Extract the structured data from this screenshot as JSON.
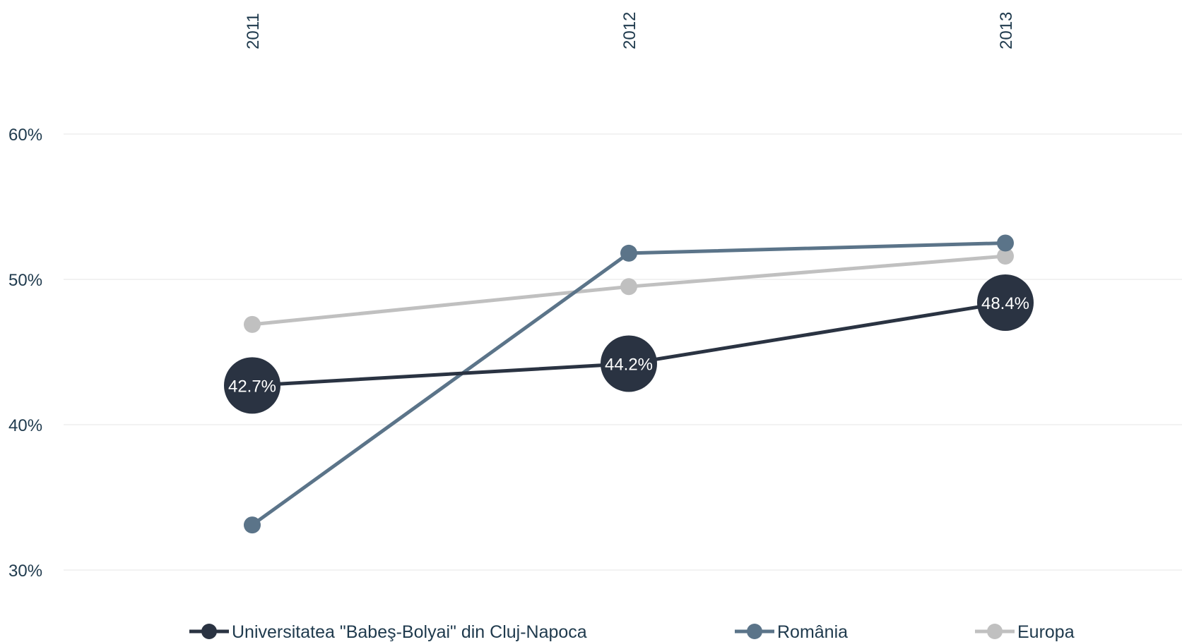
{
  "chart_data": {
    "type": "line",
    "x": [
      "2011",
      "2012",
      "2013"
    ],
    "ylim": [
      0.27,
      0.66
    ],
    "yticks": [
      0.3,
      0.4,
      0.5,
      0.6
    ],
    "ytick_labels": [
      "30%",
      "40%",
      "50%",
      "60%"
    ],
    "grid": true,
    "x_axis_position": "top",
    "legend_position": "bottom",
    "series": [
      {
        "name": "Universitatea \"Babeş-Bolyai\" din Cluj-Napoca",
        "values": [
          0.427,
          0.442,
          0.484
        ],
        "labels": [
          "42.7%",
          "44.2%",
          "48.4%"
        ],
        "color": "#2a3342",
        "marker": "large"
      },
      {
        "name": "România",
        "values": [
          0.331,
          0.518,
          0.525
        ],
        "color": "#5b7489",
        "marker": "small"
      },
      {
        "name": "Europa",
        "values": [
          0.469,
          0.495,
          0.516
        ],
        "color": "#c0c0c0",
        "marker": "small"
      }
    ]
  }
}
